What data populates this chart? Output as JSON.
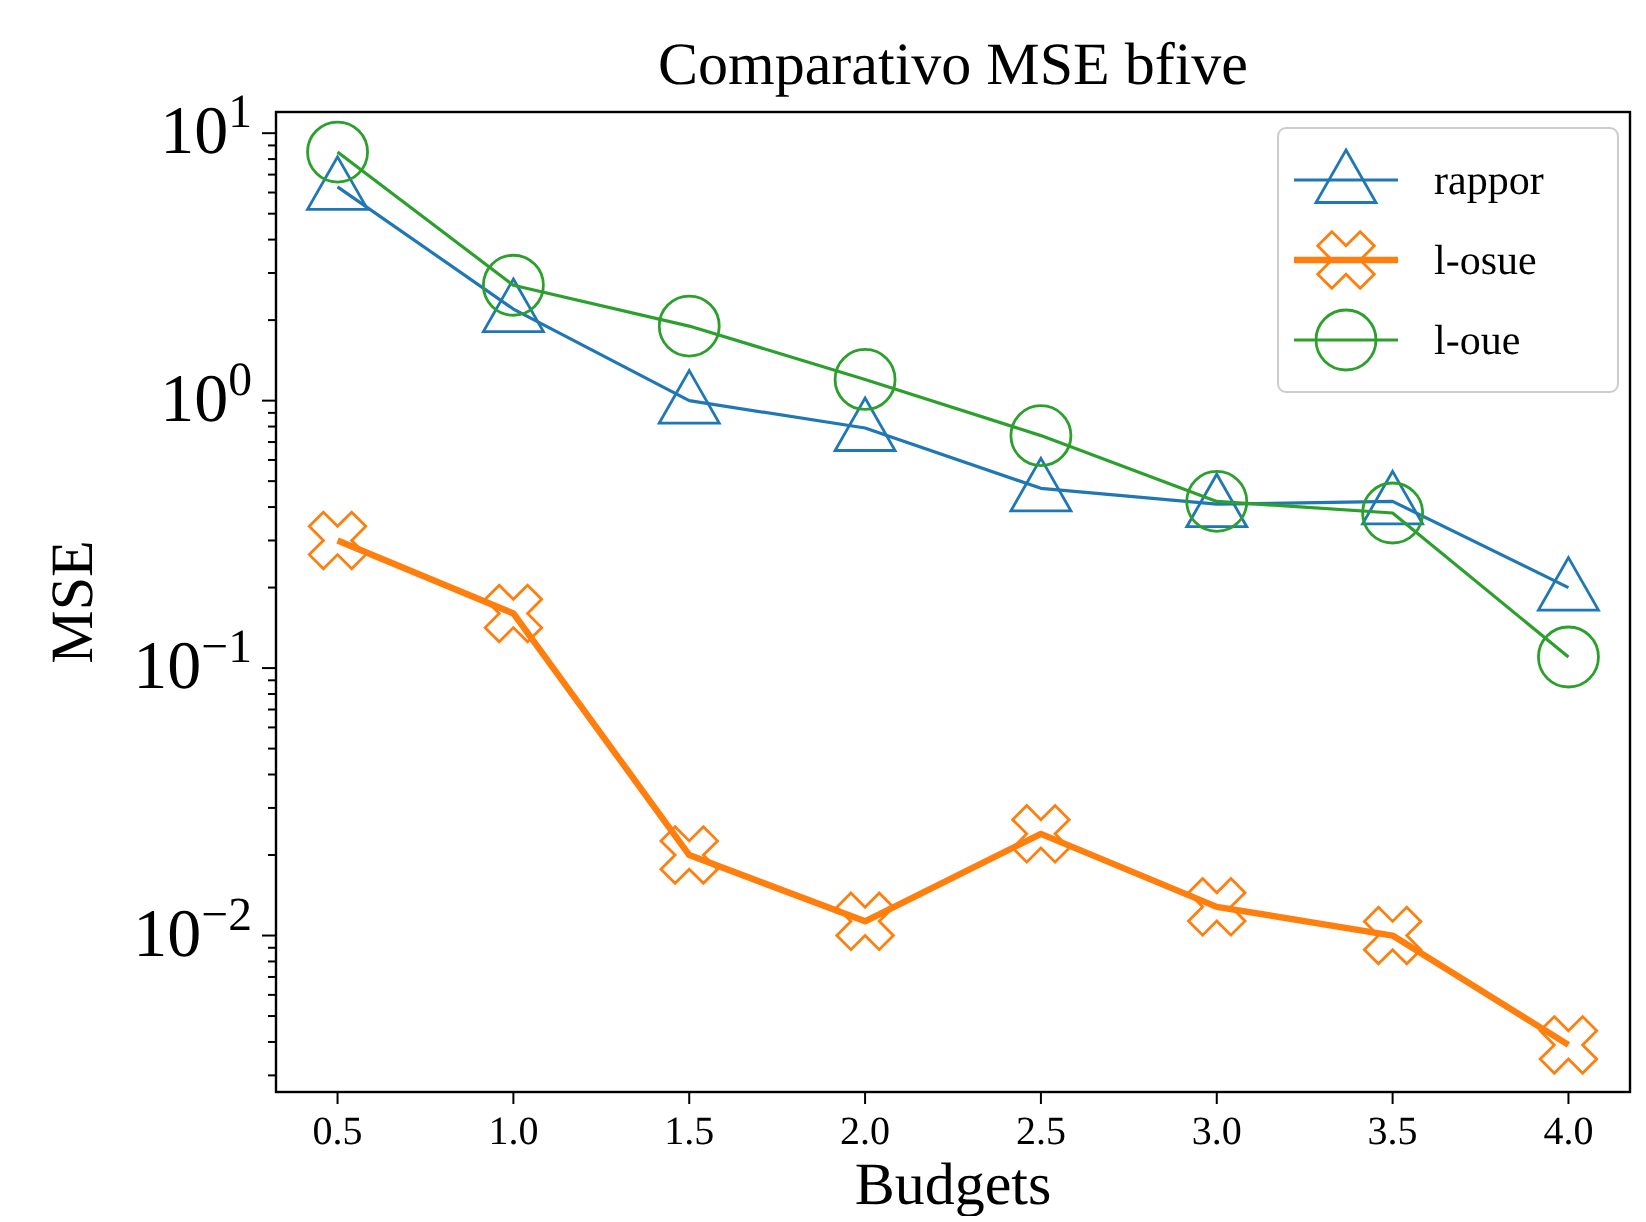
{
  "chart_data": {
    "type": "line",
    "title": "Comparativo MSE bfive",
    "xlabel": "Budgets",
    "ylabel": "MSE",
    "x": [
      0.5,
      1.0,
      1.5,
      2.0,
      2.5,
      3.0,
      3.5,
      4.0
    ],
    "series": [
      {
        "name": "rappor",
        "color": "#1f77b4",
        "marker": "triangle",
        "values": [
          6.3,
          2.2,
          1.0,
          0.79,
          0.47,
          0.41,
          0.42,
          0.2
        ]
      },
      {
        "name": "l-osue",
        "color": "#ff7f0e",
        "marker": "cross",
        "values": [
          0.3,
          0.16,
          0.02,
          0.0113,
          0.024,
          0.0128,
          0.01,
          0.0039
        ]
      },
      {
        "name": "l-oue",
        "color": "#2ca02c",
        "marker": "circle",
        "values": [
          8.5,
          2.7,
          1.9,
          1.2,
          0.74,
          0.42,
          0.38,
          0.11
        ]
      }
    ],
    "xlim": [
      0.325,
      4.175
    ],
    "xticks": [
      {
        "value": 0.5,
        "label": "0.5"
      },
      {
        "value": 1.0,
        "label": "1.0"
      },
      {
        "value": 1.5,
        "label": "1.5"
      },
      {
        "value": 2.0,
        "label": "2.0"
      },
      {
        "value": 2.5,
        "label": "2.5"
      },
      {
        "value": 3.0,
        "label": "3.0"
      },
      {
        "value": 3.5,
        "label": "3.5"
      },
      {
        "value": 4.0,
        "label": "4.0"
      }
    ],
    "ylim": [
      0.0026,
      12
    ],
    "yticks": [
      {
        "value": 0.01,
        "label": "10$^{−2}$"
      },
      {
        "value": 0.1,
        "label": "10$^{−1}$"
      },
      {
        "value": 1,
        "label": "10$^{0}$"
      },
      {
        "value": 10,
        "label": "10$^{1}$"
      }
    ],
    "log": "y",
    "grid": false,
    "legend": "top right",
    "line_style": "solid"
  }
}
